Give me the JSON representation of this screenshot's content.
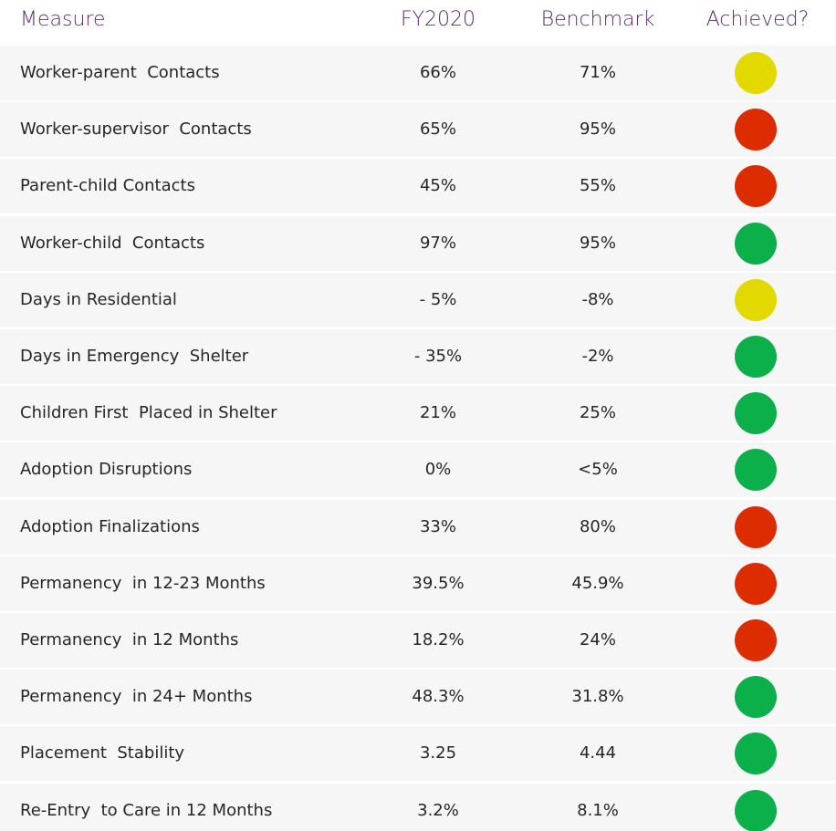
{
  "table": {
    "header": [
      "Measure",
      "FY2020",
      "Benchmark",
      "Achieved?"
    ],
    "rows": [
      {
        "cells": [
          "Worker-parent  Contacts",
          "66%",
          "71%"
        ],
        "color": "#e2d900"
      },
      {
        "cells": [
          "Worker-supervisor  Contacts",
          "65%",
          "95%"
        ],
        "color": "#dd2c00"
      },
      {
        "cells": [
          "Parent-child Contacts",
          "45%",
          "55%"
        ],
        "color": "#dd2c00"
      },
      {
        "cells": [
          "Worker-child  Contacts",
          "97%",
          "95%"
        ],
        "color": "#0bb04b"
      },
      {
        "cells": [
          "Days in Residential",
          "- 5%",
          "-8%"
        ],
        "color": "#e2d900"
      },
      {
        "cells": [
          "Days in Emergency  Shelter",
          "- 35%",
          "-2%"
        ],
        "color": "#0bb04b"
      },
      {
        "cells": [
          "Children First  Placed in Shelter",
          "21%",
          "25%"
        ],
        "color": "#0bb04b"
      },
      {
        "cells": [
          "Adoption Disruptions",
          "0%",
          "<5%"
        ],
        "color": "#0bb04b"
      },
      {
        "cells": [
          "Adoption Finalizations",
          "33%",
          "80%"
        ],
        "color": "#dd2c00"
      },
      {
        "cells": [
          "Permanency  in 12-23 Months",
          "39.5%",
          "45.9%"
        ],
        "color": "#dd2c00"
      },
      {
        "cells": [
          "Permanency  in 12 Months",
          "18.2%",
          "24%"
        ],
        "color": "#dd2c00"
      },
      {
        "cells": [
          "Permanency  in 24+ Months",
          "48.3%",
          "31.8%"
        ],
        "color": "#0bb04b"
      },
      {
        "cells": [
          "Placement  Stability",
          "3.25",
          "4.44"
        ],
        "color": "#0bb04b"
      },
      {
        "cells": [
          "Re-Entry  to Care in 12 Months",
          "3.2%",
          "8.1%"
        ],
        "color": "#0bb04b"
      }
    ]
  }
}
